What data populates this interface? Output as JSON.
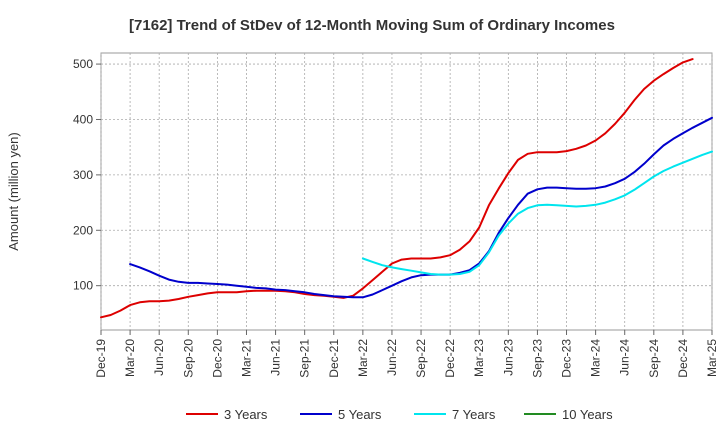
{
  "chart_data": {
    "type": "line",
    "title": "[7162]  Trend of StDev of 12-Month Moving Sum of Ordinary Incomes",
    "xlabel": "",
    "ylabel": "Amount (million yen)",
    "ylim": [
      20,
      520
    ],
    "yticks": [
      100,
      200,
      300,
      400,
      500
    ],
    "xlim": [
      "Dec-19",
      "Mar-25"
    ],
    "xtick_labels": [
      "Dec-19",
      "Mar-20",
      "Jun-20",
      "Sep-20",
      "Dec-20",
      "Mar-21",
      "Jun-21",
      "Sep-21",
      "Dec-21",
      "Mar-22",
      "Jun-22",
      "Sep-22",
      "Dec-22",
      "Mar-23",
      "Jun-23",
      "Sep-23",
      "Dec-23",
      "Mar-24",
      "Jun-24",
      "Sep-24",
      "Dec-24",
      "Mar-25"
    ],
    "grid": true,
    "legend_position": "bottom",
    "series": [
      {
        "name": "3 Years",
        "color": "#dd0000",
        "start": "Dec-19",
        "values": [
          43,
          47,
          55,
          65,
          70,
          72,
          72,
          73,
          76,
          80,
          83,
          86,
          88,
          88,
          88,
          90,
          91,
          91,
          91,
          90,
          88,
          85,
          83,
          82,
          80,
          78,
          82,
          95,
          110,
          125,
          140,
          147,
          149,
          149,
          149,
          151,
          155,
          165,
          180,
          205,
          245,
          275,
          303,
          327,
          338,
          341,
          341,
          341,
          343,
          347,
          353,
          362,
          375,
          392,
          412,
          435,
          455,
          470,
          482,
          493,
          503,
          509
        ]
      },
      {
        "name": "5 Years",
        "color": "#0000cc",
        "start": "Mar-20",
        "values": [
          139,
          133,
          126,
          118,
          111,
          107,
          105,
          105,
          104,
          103,
          102,
          100,
          98,
          96,
          95,
          93,
          92,
          90,
          88,
          85,
          83,
          81,
          80,
          79,
          79,
          84,
          92,
          100,
          108,
          115,
          119,
          120,
          120,
          120,
          123,
          128,
          140,
          162,
          195,
          222,
          246,
          266,
          274,
          277,
          277,
          276,
          275,
          275,
          276,
          279,
          285,
          293,
          305,
          320,
          337,
          353,
          365,
          375,
          385,
          394,
          403
        ]
      },
      {
        "name": "7 Years",
        "color": "#00e5ee",
        "start": "Mar-22",
        "values": [
          149,
          143,
          137,
          133,
          130,
          127,
          124,
          121,
          120,
          120,
          121,
          125,
          137,
          160,
          190,
          212,
          230,
          240,
          245,
          246,
          245,
          244,
          243,
          244,
          246,
          250,
          256,
          263,
          273,
          285,
          297,
          307,
          315,
          322,
          329,
          336,
          342
        ]
      },
      {
        "name": "10 Years",
        "color": "#228b22",
        "start": "Dec-19",
        "values": []
      }
    ]
  }
}
